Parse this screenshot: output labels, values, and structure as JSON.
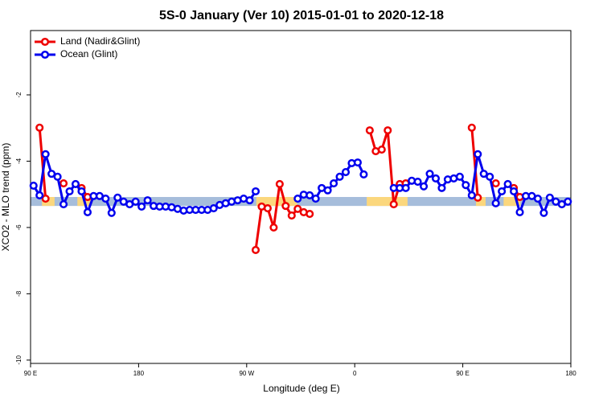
{
  "chart_data": {
    "type": "line",
    "title": "5S-0 January (Ver 10)   2015-01-01 to 2020-12-18",
    "x_label": "Longitude (deg E)",
    "y_label": "XCO2 - MLO trend (ppm)",
    "xlim": [
      90,
      540
    ],
    "ylim": [
      -10.1,
      -0.06
    ],
    "xticks": [
      {
        "value": 90,
        "label": "90 E"
      },
      180,
      {
        "value": 270,
        "label": "90 W"
      },
      {
        "value": 360,
        "label": "0"
      },
      {
        "value": 450,
        "label": "90 E"
      },
      {
        "value": 540,
        "label": "180"
      }
    ],
    "yticks": [
      -10,
      -8,
      -6,
      -4,
      -2
    ],
    "legend": "top-left",
    "band": {
      "y_range": [
        -5.35,
        -5.08
      ],
      "color": "#a6bddb",
      "land_color": "#fbd77d",
      "land_segments": [
        [
          99.5,
          110
        ],
        [
          129,
          140
        ],
        [
          278,
          312
        ],
        [
          370,
          404
        ],
        [
          461,
          469
        ],
        [
          484,
          498
        ]
      ]
    },
    "x": [
      92.5,
      97.5,
      102.5,
      107.5,
      112.5,
      117.5,
      122.5,
      127.5,
      132.5,
      137.5,
      142.5,
      147.5,
      152.5,
      157.5,
      162.5,
      167.5,
      172.5,
      177.5,
      182.5,
      187.5,
      192.5,
      197.5,
      202.5,
      207.5,
      212.5,
      217.5,
      222.5,
      227.5,
      232.5,
      237.5,
      242.5,
      247.5,
      252.5,
      257.5,
      262.5,
      267.5,
      272.5,
      277.5,
      282.5,
      287.5,
      292.5,
      297.5,
      302.5,
      307.5,
      312.5,
      317.5,
      322.5,
      327.5,
      332.5,
      337.5,
      342.5,
      347.5,
      352.5,
      357.5,
      362.5,
      367.5,
      372.5,
      377.5,
      382.5,
      387.5,
      392.5,
      397.5,
      402.5,
      407.5,
      412.5,
      417.5,
      422.5,
      427.5,
      432.5,
      437.5,
      442.5,
      447.5,
      452.5,
      457.5,
      462.5,
      467.5,
      472.5,
      477.5,
      482.5,
      487.5,
      492.5,
      497.5,
      502.5,
      507.5,
      512.5,
      517.5,
      522.5,
      527.5,
      532.5,
      537.5
    ],
    "series": [
      {
        "name": "Land (Nadir&Glint)",
        "color": "#ee0000",
        "values": [
          null,
          -2.99,
          -5.13,
          null,
          null,
          -4.67,
          null,
          null,
          -4.81,
          -5.08,
          null,
          null,
          null,
          null,
          null,
          null,
          null,
          null,
          null,
          null,
          null,
          null,
          null,
          null,
          null,
          null,
          null,
          null,
          null,
          null,
          null,
          null,
          null,
          null,
          null,
          null,
          null,
          -6.68,
          -5.37,
          -5.42,
          -6.0,
          -4.69,
          -5.35,
          -5.64,
          -5.44,
          -5.54,
          -5.59,
          null,
          null,
          null,
          null,
          null,
          null,
          null,
          null,
          null,
          -3.07,
          -3.7,
          -3.65,
          -3.07,
          -5.3,
          -4.69,
          -4.67,
          null,
          null,
          null,
          null,
          null,
          null,
          null,
          null,
          null,
          null,
          -2.99,
          -5.1,
          null,
          null,
          -4.67,
          null,
          null,
          -4.81,
          -5.08,
          null,
          null,
          null,
          null,
          null,
          null,
          null,
          null
        ]
      },
      {
        "name": "Ocean (Glint)",
        "color": "#0000ee",
        "values": [
          -4.74,
          -5.03,
          -3.79,
          -4.38,
          -4.47,
          -5.3,
          -4.91,
          -4.69,
          -4.91,
          -5.54,
          -5.05,
          -5.05,
          -5.13,
          -5.56,
          -5.1,
          -5.22,
          -5.3,
          -5.22,
          -5.37,
          -5.18,
          -5.35,
          -5.37,
          -5.37,
          -5.39,
          -5.44,
          -5.49,
          -5.47,
          -5.47,
          -5.47,
          -5.47,
          -5.42,
          -5.32,
          -5.27,
          -5.22,
          -5.18,
          -5.13,
          -5.18,
          -4.91,
          null,
          null,
          null,
          null,
          null,
          null,
          -5.13,
          -5.01,
          -5.03,
          -5.13,
          -4.81,
          -4.88,
          -4.67,
          -4.47,
          -4.33,
          -4.06,
          -4.04,
          -4.4,
          null,
          null,
          null,
          null,
          -4.81,
          -4.81,
          -4.81,
          -4.59,
          -4.62,
          -4.76,
          -4.38,
          -4.52,
          -4.81,
          -4.55,
          -4.52,
          -4.47,
          -4.72,
          -5.03,
          -3.79,
          -4.38,
          -4.47,
          -5.27,
          -4.91,
          -4.69,
          -4.91,
          -5.54,
          -5.05,
          -5.05,
          -5.13,
          -5.56,
          -5.1,
          -5.22,
          -5.3,
          -5.22
        ]
      }
    ]
  }
}
